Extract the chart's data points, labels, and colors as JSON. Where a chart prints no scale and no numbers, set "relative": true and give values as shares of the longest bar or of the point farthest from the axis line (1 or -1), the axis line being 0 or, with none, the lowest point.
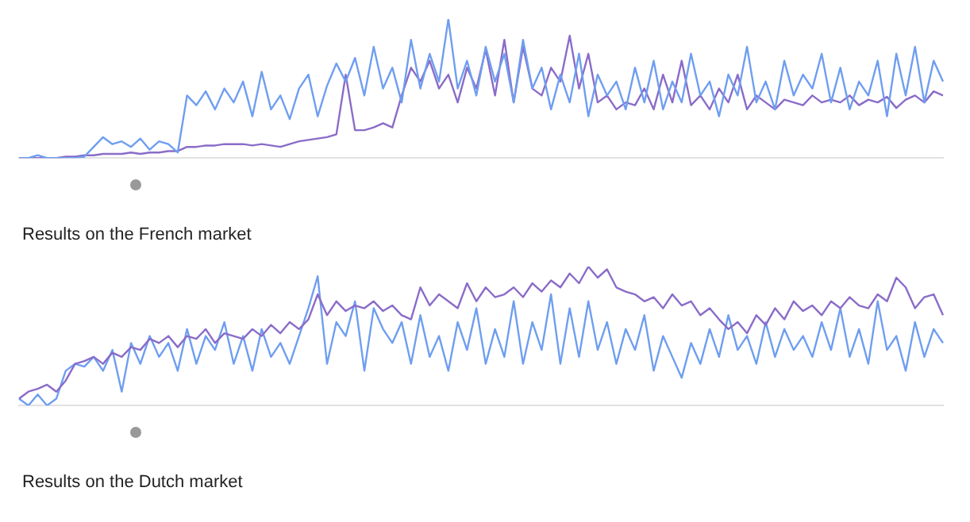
{
  "chart_data": [
    {
      "type": "line",
      "title": "Results on the French market",
      "relative": true,
      "legend": false,
      "marker": "none",
      "line_style": "solid",
      "categories": [
        null,
        null,
        null,
        null,
        null,
        null,
        null,
        null,
        null,
        null,
        null,
        null,
        null,
        null,
        null,
        null,
        null,
        null,
        null,
        null,
        null,
        null,
        null,
        null,
        null,
        null,
        null,
        null,
        null,
        null,
        null,
        null,
        null,
        null,
        null,
        null,
        null,
        null,
        null,
        null,
        null,
        null,
        null,
        null,
        null,
        null,
        null,
        null,
        null,
        null,
        null,
        null,
        null,
        null,
        null,
        null,
        null,
        null,
        null,
        null,
        null,
        null,
        null,
        null,
        null,
        null,
        null,
        null,
        null,
        null,
        null,
        null,
        null,
        null,
        null,
        null,
        null,
        null,
        null,
        null,
        null,
        null,
        null,
        null,
        null,
        null,
        null,
        null,
        null,
        null,
        null,
        null,
        null,
        null,
        null,
        null,
        null,
        null,
        null,
        null
      ],
      "series": [
        {
          "color": "#6f9ef0",
          "values": [
            0,
            0,
            0.02,
            0,
            0,
            0,
            0,
            0.01,
            0.08,
            0.15,
            0.1,
            0.12,
            0.08,
            0.14,
            0.06,
            0.12,
            0.1,
            0.04,
            0.45,
            0.38,
            0.48,
            0.35,
            0.5,
            0.4,
            0.55,
            0.3,
            0.62,
            0.35,
            0.45,
            0.28,
            0.5,
            0.6,
            0.3,
            0.52,
            0.68,
            0.55,
            0.72,
            0.45,
            0.8,
            0.5,
            0.65,
            0.4,
            0.85,
            0.5,
            0.75,
            0.55,
            1.0,
            0.5,
            0.7,
            0.45,
            0.8,
            0.55,
            0.75,
            0.4,
            0.85,
            0.5,
            0.65,
            0.35,
            0.6,
            0.4,
            0.75,
            0.3,
            0.6,
            0.45,
            0.55,
            0.35,
            0.65,
            0.4,
            0.7,
            0.35,
            0.55,
            0.4,
            0.75,
            0.45,
            0.55,
            0.3,
            0.6,
            0.45,
            0.8,
            0.4,
            0.55,
            0.35,
            0.7,
            0.45,
            0.6,
            0.5,
            0.75,
            0.4,
            0.65,
            0.35,
            0.55,
            0.45,
            0.7,
            0.3,
            0.75,
            0.45,
            0.8,
            0.4,
            0.7,
            0.55
          ]
        },
        {
          "color": "#8a6cc8",
          "values": [
            0,
            0,
            0,
            0,
            0,
            0.01,
            0.01,
            0.02,
            0.02,
            0.03,
            0.03,
            0.03,
            0.04,
            0.03,
            0.04,
            0.04,
            0.05,
            0.05,
            0.08,
            0.08,
            0.09,
            0.09,
            0.1,
            0.1,
            0.1,
            0.09,
            0.1,
            0.09,
            0.08,
            0.1,
            0.12,
            0.13,
            0.14,
            0.15,
            0.17,
            0.6,
            0.2,
            0.2,
            0.22,
            0.25,
            0.22,
            0.45,
            0.65,
            0.55,
            0.7,
            0.5,
            0.6,
            0.4,
            0.65,
            0.5,
            0.78,
            0.45,
            0.85,
            0.4,
            0.8,
            0.5,
            0.45,
            0.65,
            0.55,
            0.88,
            0.5,
            0.75,
            0.4,
            0.45,
            0.35,
            0.4,
            0.38,
            0.5,
            0.35,
            0.6,
            0.4,
            0.7,
            0.38,
            0.45,
            0.35,
            0.5,
            0.4,
            0.6,
            0.35,
            0.45,
            0.4,
            0.35,
            0.42,
            0.4,
            0.38,
            0.45,
            0.4,
            0.42,
            0.4,
            0.45,
            0.38,
            0.42,
            0.4,
            0.44,
            0.36,
            0.42,
            0.45,
            0.4,
            0.48,
            0.45
          ]
        }
      ]
    },
    {
      "type": "line",
      "title": "Results on the Dutch market",
      "relative": true,
      "legend": false,
      "marker": "none",
      "line_style": "solid",
      "categories": [
        null,
        null,
        null,
        null,
        null,
        null,
        null,
        null,
        null,
        null,
        null,
        null,
        null,
        null,
        null,
        null,
        null,
        null,
        null,
        null,
        null,
        null,
        null,
        null,
        null,
        null,
        null,
        null,
        null,
        null,
        null,
        null,
        null,
        null,
        null,
        null,
        null,
        null,
        null,
        null,
        null,
        null,
        null,
        null,
        null,
        null,
        null,
        null,
        null,
        null,
        null,
        null,
        null,
        null,
        null,
        null,
        null,
        null,
        null,
        null,
        null,
        null,
        null,
        null,
        null,
        null,
        null,
        null,
        null,
        null,
        null,
        null,
        null,
        null,
        null,
        null,
        null,
        null,
        null,
        null,
        null,
        null,
        null,
        null,
        null,
        null,
        null,
        null,
        null,
        null,
        null,
        null,
        null,
        null,
        null,
        null,
        null,
        null,
        null,
        null
      ],
      "series": [
        {
          "color": "#8a6cc8",
          "values": [
            0.05,
            0.1,
            0.12,
            0.15,
            0.1,
            0.18,
            0.3,
            0.32,
            0.35,
            0.3,
            0.38,
            0.35,
            0.42,
            0.4,
            0.48,
            0.45,
            0.5,
            0.42,
            0.5,
            0.48,
            0.55,
            0.45,
            0.52,
            0.5,
            0.48,
            0.55,
            0.5,
            0.58,
            0.52,
            0.6,
            0.55,
            0.62,
            0.8,
            0.65,
            0.75,
            0.68,
            0.72,
            0.7,
            0.75,
            0.68,
            0.72,
            0.65,
            0.62,
            0.85,
            0.72,
            0.8,
            0.75,
            0.7,
            0.88,
            0.75,
            0.85,
            0.78,
            0.8,
            0.85,
            0.78,
            0.88,
            0.82,
            0.9,
            0.85,
            0.95,
            0.88,
            1.0,
            0.92,
            0.98,
            0.85,
            0.82,
            0.8,
            0.75,
            0.78,
            0.7,
            0.8,
            0.72,
            0.75,
            0.65,
            0.7,
            0.62,
            0.55,
            0.6,
            0.52,
            0.65,
            0.58,
            0.7,
            0.62,
            0.75,
            0.68,
            0.72,
            0.65,
            0.75,
            0.7,
            0.78,
            0.72,
            0.7,
            0.8,
            0.75,
            0.92,
            0.85,
            0.7,
            0.78,
            0.8,
            0.65
          ]
        },
        {
          "color": "#6f9ef0",
          "values": [
            0.05,
            0,
            0.08,
            0,
            0.05,
            0.25,
            0.3,
            0.28,
            0.35,
            0.25,
            0.4,
            0.1,
            0.45,
            0.3,
            0.5,
            0.35,
            0.45,
            0.25,
            0.55,
            0.3,
            0.5,
            0.4,
            0.6,
            0.3,
            0.5,
            0.25,
            0.55,
            0.35,
            0.45,
            0.3,
            0.5,
            0.7,
            0.93,
            0.3,
            0.6,
            0.5,
            0.75,
            0.25,
            0.7,
            0.55,
            0.45,
            0.6,
            0.3,
            0.65,
            0.35,
            0.5,
            0.25,
            0.6,
            0.4,
            0.7,
            0.3,
            0.55,
            0.35,
            0.75,
            0.3,
            0.6,
            0.4,
            0.8,
            0.3,
            0.7,
            0.35,
            0.75,
            0.4,
            0.6,
            0.3,
            0.55,
            0.4,
            0.65,
            0.25,
            0.5,
            0.35,
            0.2,
            0.45,
            0.3,
            0.55,
            0.35,
            0.65,
            0.4,
            0.5,
            0.3,
            0.6,
            0.35,
            0.55,
            0.4,
            0.5,
            0.35,
            0.6,
            0.4,
            0.7,
            0.35,
            0.55,
            0.3,
            0.75,
            0.4,
            0.5,
            0.25,
            0.6,
            0.35,
            0.55,
            0.45
          ]
        }
      ]
    }
  ]
}
